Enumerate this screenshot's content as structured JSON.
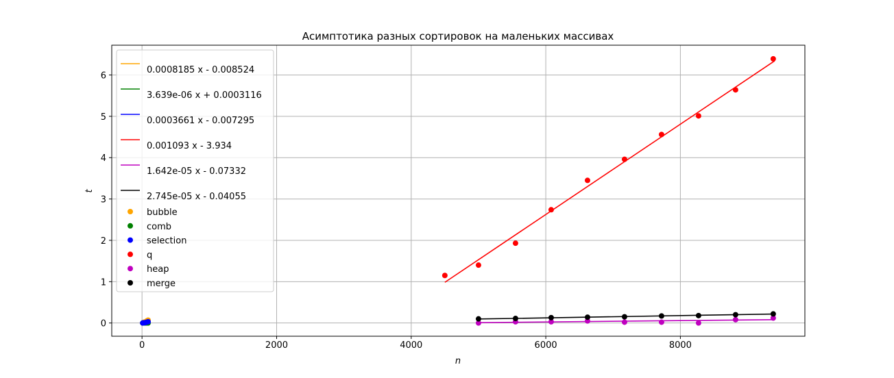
{
  "chart_data": {
    "type": "scatter",
    "title": "Асимптотика разных сортировок на маленьких массивах",
    "xlabel": "n",
    "ylabel": "t",
    "xlim": [
      -450,
      9850
    ],
    "ylim": [
      -0.32,
      6.72
    ],
    "xticks": [
      0,
      2000,
      4000,
      6000,
      8000
    ],
    "yticks": [
      0,
      1,
      2,
      3,
      4,
      5,
      6
    ],
    "grid": true,
    "legend_position": "upper-left",
    "fits": [
      {
        "label": "0.0008185 x - 0.008524",
        "color": "#ffa500",
        "x": [
          10,
          100
        ]
      },
      {
        "label": "3.639e-06 x + 0.0003116",
        "color": "#008000",
        "x": [
          10,
          100
        ]
      },
      {
        "label": "0.0003661 x - 0.007295",
        "color": "#0000ff",
        "x": [
          10,
          100
        ]
      },
      {
        "label": "0.001093 x - 3.934",
        "color": "#ff0000",
        "x": [
          4500,
          9400
        ]
      },
      {
        "label": "1.642e-05 x - 0.07332",
        "color": "#bf00bf",
        "x": [
          5000,
          9400
        ]
      },
      {
        "label": "2.745e-05 x - 0.04055",
        "color": "#000000",
        "x": [
          5000,
          9400
        ]
      }
    ],
    "series": [
      {
        "name": "bubble",
        "color": "#ffa500",
        "x": [
          10,
          30,
          50,
          70,
          90
        ],
        "y": [
          0.0,
          0.02,
          0.03,
          0.05,
          0.07
        ]
      },
      {
        "name": "comb",
        "color": "#008000",
        "x": [
          10,
          30,
          50,
          70,
          90
        ],
        "y": [
          0.0,
          0.0,
          0.0,
          0.0,
          0.0
        ]
      },
      {
        "name": "selection",
        "color": "#0000ff",
        "x": [
          10,
          30,
          50,
          70,
          90
        ],
        "y": [
          0.0,
          0.005,
          0.01,
          0.02,
          0.03
        ]
      },
      {
        "name": "q",
        "color": "#ff0000",
        "x": [
          4500,
          5000,
          5550,
          6080,
          6620,
          7170,
          7720,
          8270,
          8820,
          9380
        ],
        "y": [
          1.15,
          1.4,
          1.93,
          2.74,
          3.45,
          3.96,
          4.56,
          5.01,
          5.64,
          6.39
        ]
      },
      {
        "name": "heap",
        "color": "#bf00bf",
        "x": [
          5000,
          5550,
          6080,
          6620,
          7170,
          7720,
          8270,
          8820,
          9380
        ],
        "y": [
          0.0,
          0.03,
          0.03,
          0.05,
          0.02,
          0.02,
          0.0,
          0.08,
          0.12
        ]
      },
      {
        "name": "merge",
        "color": "#000000",
        "x": [
          5000,
          5550,
          6080,
          6620,
          7170,
          7720,
          8270,
          8820,
          9380
        ],
        "y": [
          0.1,
          0.11,
          0.13,
          0.14,
          0.15,
          0.17,
          0.18,
          0.2,
          0.22
        ]
      }
    ]
  }
}
